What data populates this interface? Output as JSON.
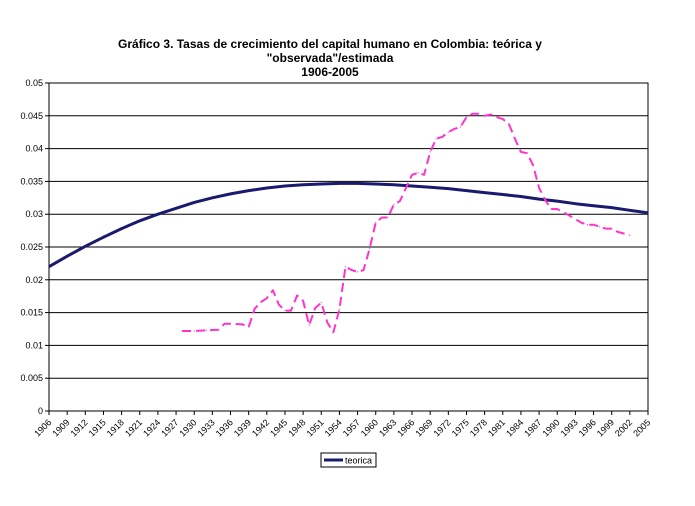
{
  "chart_data": {
    "type": "line",
    "title_lines": [
      "Gráfico 3. Tasas de crecimiento del capital humano en Colombia: teórica y",
      "\"observada\"/estimada",
      "1906-2005"
    ],
    "xlabel": "",
    "ylabel": "",
    "x_tick_labels": [
      "1906",
      "1909",
      "1912",
      "1915",
      "1918",
      "1921",
      "1924",
      "1927",
      "1930",
      "1933",
      "1936",
      "1939",
      "1942",
      "1945",
      "1948",
      "1951",
      "1954",
      "1957",
      "1960",
      "1963",
      "1966",
      "1969",
      "1972",
      "1975",
      "1978",
      "1981",
      "1984",
      "1987",
      "1990",
      "1993",
      "1996",
      "1999",
      "2002",
      "2005"
    ],
    "y_tick_labels": [
      "0",
      "0.005",
      "0.01",
      "0.015",
      "0.02",
      "0.025",
      "0.03",
      "0.035",
      "0.04",
      "0.045",
      "0.05"
    ],
    "xlim": [
      1906,
      2005
    ],
    "ylim": [
      0,
      0.05
    ],
    "grid": "horizontal",
    "legend_position": "bottom",
    "series": [
      {
        "name": "teorica",
        "color": "#1a1a6e",
        "style": "solid",
        "x": [
          1906,
          1909,
          1912,
          1915,
          1918,
          1921,
          1924,
          1927,
          1930,
          1933,
          1936,
          1939,
          1942,
          1945,
          1948,
          1951,
          1954,
          1957,
          1960,
          1963,
          1966,
          1969,
          1972,
          1975,
          1978,
          1981,
          1984,
          1987,
          1990,
          1993,
          1996,
          1999,
          2002,
          2005
        ],
        "values": [
          0.022,
          0.0236,
          0.0251,
          0.0265,
          0.0278,
          0.029,
          0.03,
          0.0309,
          0.0318,
          0.0325,
          0.0331,
          0.0336,
          0.034,
          0.0343,
          0.0345,
          0.0346,
          0.0347,
          0.0347,
          0.0346,
          0.0345,
          0.0343,
          0.0341,
          0.0339,
          0.0336,
          0.0333,
          0.033,
          0.0327,
          0.0323,
          0.032,
          0.0316,
          0.0313,
          0.031,
          0.0306,
          0.0302
        ]
      },
      {
        "color": "#ff33cc",
        "style": "dashed",
        "x": [
          1928,
          1930,
          1932,
          1934,
          1935,
          1936,
          1938,
          1939,
          1940,
          1941,
          1942,
          1943,
          1944,
          1945,
          1946,
          1947,
          1948,
          1949,
          1950,
          1951,
          1952,
          1953,
          1954,
          1955,
          1956,
          1957,
          1958,
          1959,
          1960,
          1961,
          1962,
          1963,
          1964,
          1965,
          1966,
          1967,
          1968,
          1969,
          1970,
          1971,
          1972,
          1973,
          1974,
          1975,
          1976,
          1977,
          1978,
          1979,
          1980,
          1981,
          1982,
          1983,
          1984,
          1985,
          1986,
          1987,
          1988,
          1989,
          1990,
          1992,
          1994,
          1995,
          1996,
          1997,
          1998,
          1999,
          2000,
          2002
        ],
        "values": [
          0.0122,
          0.0122,
          0.0123,
          0.0124,
          0.0133,
          0.0133,
          0.0132,
          0.0128,
          0.0156,
          0.0166,
          0.0172,
          0.0184,
          0.0162,
          0.0153,
          0.0153,
          0.0176,
          0.0168,
          0.0131,
          0.0157,
          0.0165,
          0.0135,
          0.012,
          0.0155,
          0.022,
          0.0215,
          0.0212,
          0.0215,
          0.0248,
          0.0287,
          0.0295,
          0.0295,
          0.0315,
          0.032,
          0.034,
          0.036,
          0.0363,
          0.036,
          0.0395,
          0.0415,
          0.0418,
          0.0425,
          0.043,
          0.0433,
          0.0448,
          0.0453,
          0.0453,
          0.045,
          0.0452,
          0.0448,
          0.0445,
          0.0438,
          0.0415,
          0.0395,
          0.0393,
          0.0375,
          0.034,
          0.0322,
          0.0308,
          0.0308,
          0.0298,
          0.0287,
          0.0284,
          0.0284,
          0.0281,
          0.0278,
          0.0278,
          0.0273,
          0.0268
        ]
      }
    ]
  }
}
